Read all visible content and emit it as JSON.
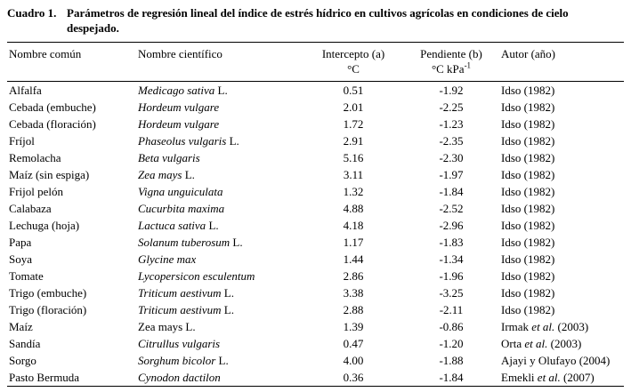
{
  "caption": {
    "label": "Cuadro 1.",
    "text": "Parámetros de regresión lineal del índice de estrés hídrico en cultivos agrícolas en condiciones de cielo despejado."
  },
  "table": {
    "headers": {
      "common_name": "Nombre común",
      "scientific_name": "Nombre científico",
      "intercept_line1": "Intercepto (a)",
      "intercept_unit": "°C",
      "slope_line1": "Pendiente (b)",
      "slope_unit": "°C kPa",
      "slope_unit_sup": "-1",
      "author": "Autor (año)"
    },
    "rows": [
      {
        "common": "Alfalfa",
        "sci_italic": "Medicago sativa",
        "sci_roman": " L.",
        "intercept": "0.51",
        "slope": "-1.92",
        "author_pre": "Idso (1982)",
        "author_etal": "",
        "author_post": ""
      },
      {
        "common": "Cebada (embuche)",
        "sci_italic": "Hordeum vulgare",
        "sci_roman": "",
        "intercept": "2.01",
        "slope": "-2.25",
        "author_pre": "Idso (1982)",
        "author_etal": "",
        "author_post": ""
      },
      {
        "common": "Cebada (floración)",
        "sci_italic": "Hordeum vulgare",
        "sci_roman": "",
        "intercept": "1.72",
        "slope": "-1.23",
        "author_pre": "Idso (1982)",
        "author_etal": "",
        "author_post": ""
      },
      {
        "common": "Fríjol",
        "sci_italic": "Phaseolus vulgaris",
        "sci_roman": " L.",
        "intercept": "2.91",
        "slope": "-2.35",
        "author_pre": "Idso (1982)",
        "author_etal": "",
        "author_post": ""
      },
      {
        "common": "Remolacha",
        "sci_italic": "Beta vulgaris",
        "sci_roman": "",
        "intercept": "5.16",
        "slope": "-2.30",
        "author_pre": "Idso (1982)",
        "author_etal": "",
        "author_post": ""
      },
      {
        "common": "Maíz (sin espiga)",
        "sci_italic": "Zea mays",
        "sci_roman": " L.",
        "intercept": "3.11",
        "slope": "-1.97",
        "author_pre": "Idso (1982)",
        "author_etal": "",
        "author_post": ""
      },
      {
        "common": "Frijol pelón",
        "sci_italic": "Vigna unguiculata",
        "sci_roman": "",
        "intercept": "1.32",
        "slope": "-1.84",
        "author_pre": "Idso (1982)",
        "author_etal": "",
        "author_post": ""
      },
      {
        "common": "Calabaza",
        "sci_italic": "Cucurbita maxima",
        "sci_roman": "",
        "intercept": "4.88",
        "slope": "-2.52",
        "author_pre": "Idso (1982)",
        "author_etal": "",
        "author_post": ""
      },
      {
        "common": "Lechuga (hoja)",
        "sci_italic": "Lactuca sativa",
        "sci_roman": " L.",
        "intercept": "4.18",
        "slope": "-2.96",
        "author_pre": "Idso (1982)",
        "author_etal": "",
        "author_post": ""
      },
      {
        "common": "Papa",
        "sci_italic": "Solanum tuberosum",
        "sci_roman": " L.",
        "intercept": "1.17",
        "slope": "-1.83",
        "author_pre": "Idso (1982)",
        "author_etal": "",
        "author_post": ""
      },
      {
        "common": "Soya",
        "sci_italic": "Glycine max",
        "sci_roman": "",
        "intercept": "1.44",
        "slope": "-1.34",
        "author_pre": "Idso (1982)",
        "author_etal": "",
        "author_post": ""
      },
      {
        "common": "Tomate",
        "sci_italic": "Lycopersicon esculentum",
        "sci_roman": "",
        "intercept": "2.86",
        "slope": "-1.96",
        "author_pre": "Idso (1982)",
        "author_etal": "",
        "author_post": ""
      },
      {
        "common": "Trigo (embuche)",
        "sci_italic": "Triticum aestivum",
        "sci_roman": " L.",
        "intercept": "3.38",
        "slope": "-3.25",
        "author_pre": "Idso (1982)",
        "author_etal": "",
        "author_post": ""
      },
      {
        "common": "Trigo (floración)",
        "sci_italic": "Triticum aestivum",
        "sci_roman": " L.",
        "intercept": "2.88",
        "slope": "-2.11",
        "author_pre": "Idso (1982)",
        "author_etal": "",
        "author_post": ""
      },
      {
        "common": "Maíz",
        "sci_italic": "",
        "sci_roman": "Zea mays L.",
        "intercept": "1.39",
        "slope": "-0.86",
        "author_pre": "Irmak ",
        "author_etal": "et al.",
        "author_post": " (2003)"
      },
      {
        "common": "Sandía",
        "sci_italic": "Citrullus vulgaris",
        "sci_roman": "",
        "intercept": "0.47",
        "slope": "-1.20",
        "author_pre": "Orta ",
        "author_etal": "et al.",
        "author_post": " (2003)"
      },
      {
        "common": "Sorgo",
        "sci_italic": "Sorghum bicolor",
        "sci_roman": " L.",
        "intercept": "4.00",
        "slope": "-1.88",
        "author_pre": "Ajayi y Olufayo (2004)",
        "author_etal": "",
        "author_post": ""
      },
      {
        "common": "Pasto Bermuda",
        "sci_italic": "Cynodon dactilon",
        "sci_roman": "",
        "intercept": "0.36",
        "slope": "-1.84",
        "author_pre": "Emekli ",
        "author_etal": "et al.",
        "author_post": " (2007)"
      }
    ]
  }
}
